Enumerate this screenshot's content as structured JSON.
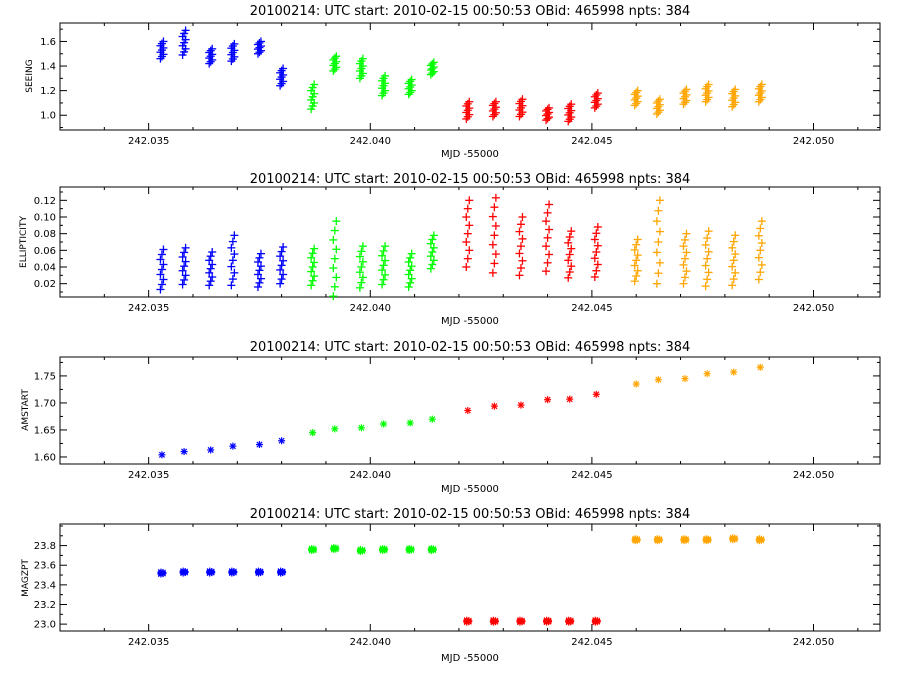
{
  "page": {
    "colors": {
      "background": "#ffffff",
      "axis": "#000000"
    }
  },
  "chart_data": [
    {
      "type": "scatter",
      "title": "20100214: UTC start: 2010-02-15 00:50:53  OBid: 465998  npts:    384",
      "xlabel": "MJD -55000",
      "ylabel": "SEEING",
      "xlim": [
        242.033,
        242.0515
      ],
      "ylim": [
        0.88,
        1.75
      ],
      "xticks": [
        242.035,
        242.04,
        242.045,
        242.05
      ],
      "xticklabels": [
        "242.035",
        "242.040",
        "242.045",
        "242.050"
      ],
      "yticks": [
        1.0,
        1.2,
        1.4,
        1.6
      ],
      "yticklabels": [
        "1.0",
        "1.2",
        "1.4",
        "1.6"
      ],
      "marker": "plus",
      "series": [
        {
          "color": "#0000ff",
          "x": [
            242.0353,
            242.0358,
            242.0364,
            242.0369,
            242.0375,
            242.038
          ],
          "y": [
            1.53,
            1.59,
            1.48,
            1.51,
            1.55,
            1.31
          ],
          "spread": [
            0.07,
            0.1,
            0.06,
            0.07,
            0.05,
            0.07
          ]
        },
        {
          "color": "#00ff00",
          "x": [
            242.0387,
            242.0392,
            242.0398,
            242.0403,
            242.0409,
            242.0414
          ],
          "y": [
            1.15,
            1.42,
            1.38,
            1.24,
            1.23,
            1.38
          ],
          "spread": [
            0.1,
            0.06,
            0.08,
            0.08,
            0.06,
            0.05
          ]
        },
        {
          "color": "#ff0000",
          "x": [
            242.0422,
            242.0428,
            242.0434,
            242.044,
            242.0445,
            242.0451
          ],
          "y": [
            1.04,
            1.05,
            1.06,
            1.01,
            1.02,
            1.12
          ],
          "spread": [
            0.07,
            0.06,
            0.07,
            0.05,
            0.07,
            0.06
          ]
        },
        {
          "color": "#ffa500",
          "x": [
            242.046,
            242.0465,
            242.0471,
            242.0476,
            242.0482,
            242.0488
          ],
          "y": [
            1.14,
            1.07,
            1.15,
            1.18,
            1.14,
            1.18
          ],
          "spread": [
            0.06,
            0.06,
            0.06,
            0.07,
            0.07,
            0.07
          ]
        }
      ]
    },
    {
      "type": "scatter",
      "title": "20100214: UTC start: 2010-02-15 00:50:53  OBid: 465998  npts:    384",
      "xlabel": "MJD -55000",
      "ylabel": "ELLIPTICITY",
      "xlim": [
        242.033,
        242.0515
      ],
      "ylim": [
        0.004,
        0.136
      ],
      "xticks": [
        242.035,
        242.04,
        242.045,
        242.05
      ],
      "xticklabels": [
        "242.035",
        "242.040",
        "242.045",
        "242.050"
      ],
      "yticks": [
        0.02,
        0.04,
        0.06,
        0.08,
        0.1,
        0.12
      ],
      "yticklabels": [
        "0.02",
        "0.04",
        "0.06",
        "0.08",
        "0.10",
        "0.12"
      ],
      "marker": "plus",
      "series": [
        {
          "color": "#0000ff",
          "x": [
            242.0353,
            242.0358,
            242.0364,
            242.0369,
            242.0375,
            242.038
          ],
          "y": [
            0.037,
            0.041,
            0.038,
            0.048,
            0.036,
            0.042
          ],
          "spread": [
            0.024,
            0.022,
            0.02,
            0.03,
            0.02,
            0.022
          ]
        },
        {
          "color": "#00ff00",
          "x": [
            242.0387,
            242.0392,
            242.0398,
            242.0403,
            242.0409,
            242.0414
          ],
          "y": [
            0.04,
            0.05,
            0.04,
            0.042,
            0.036,
            0.058
          ],
          "spread": [
            0.022,
            0.045,
            0.025,
            0.023,
            0.02,
            0.02
          ]
        },
        {
          "color": "#ff0000",
          "x": [
            242.0422,
            242.0428,
            242.0434,
            242.044,
            242.0445,
            242.0451
          ],
          "y": [
            0.08,
            0.078,
            0.065,
            0.075,
            0.055,
            0.058
          ],
          "spread": [
            0.04,
            0.045,
            0.035,
            0.04,
            0.028,
            0.03
          ]
        },
        {
          "color": "#ffa500",
          "x": [
            242.046,
            242.0465,
            242.0471,
            242.0476,
            242.0482,
            242.0488
          ],
          "y": [
            0.048,
            0.07,
            0.05,
            0.05,
            0.048,
            0.06
          ],
          "spread": [
            0.025,
            0.05,
            0.03,
            0.033,
            0.03,
            0.035
          ]
        }
      ]
    },
    {
      "type": "scatter",
      "title": "20100214: UTC start: 2010-02-15 00:50:53  OBid: 465998  npts:    384",
      "xlabel": "MJD -55000",
      "ylabel": "AMSTART",
      "xlim": [
        242.033,
        242.0515
      ],
      "ylim": [
        1.587,
        1.785
      ],
      "xticks": [
        242.035,
        242.04,
        242.045,
        242.05
      ],
      "xticklabels": [
        "242.035",
        "242.040",
        "242.045",
        "242.050"
      ],
      "yticks": [
        1.6,
        1.65,
        1.7,
        1.75
      ],
      "yticklabels": [
        "1.60",
        "1.65",
        "1.70",
        "1.75"
      ],
      "marker": "asterisk",
      "series": [
        {
          "color": "#0000ff",
          "x": [
            242.0353,
            242.0358,
            242.0364,
            242.0369,
            242.0375,
            242.038
          ],
          "y": [
            1.604,
            1.61,
            1.613,
            1.62,
            1.623,
            1.63
          ],
          "spread": [
            0,
            0,
            0,
            0,
            0,
            0
          ]
        },
        {
          "color": "#00ff00",
          "x": [
            242.0387,
            242.0392,
            242.0398,
            242.0403,
            242.0409,
            242.0414
          ],
          "y": [
            1.645,
            1.652,
            1.654,
            1.661,
            1.663,
            1.67
          ],
          "spread": [
            0,
            0,
            0,
            0,
            0,
            0
          ]
        },
        {
          "color": "#ff0000",
          "x": [
            242.0422,
            242.0428,
            242.0434,
            242.044,
            242.0445,
            242.0451
          ],
          "y": [
            1.686,
            1.694,
            1.696,
            1.706,
            1.707,
            1.716
          ],
          "spread": [
            0,
            0,
            0,
            0,
            0,
            0
          ]
        },
        {
          "color": "#ffa500",
          "x": [
            242.046,
            242.0465,
            242.0471,
            242.0476,
            242.0482,
            242.0488
          ],
          "y": [
            1.735,
            1.743,
            1.745,
            1.754,
            1.757,
            1.766
          ],
          "spread": [
            0,
            0,
            0,
            0,
            0,
            0
          ]
        }
      ]
    },
    {
      "type": "scatter",
      "title": "20100214: UTC start: 2010-02-15 00:50:53  OBid: 465998  npts:    384",
      "xlabel": "MJD -55000",
      "ylabel": "MAGZPT",
      "xlim": [
        242.033,
        242.0515
      ],
      "ylim": [
        22.93,
        24.02
      ],
      "xticks": [
        242.035,
        242.04,
        242.045,
        242.05
      ],
      "xticklabels": [
        "242.035",
        "242.040",
        "242.045",
        "242.050"
      ],
      "yticks": [
        23.0,
        23.2,
        23.4,
        23.6,
        23.8
      ],
      "yticklabels": [
        "23.0",
        "23.2",
        "23.4",
        "23.6",
        "23.8"
      ],
      "marker": "asterisk",
      "series": [
        {
          "color": "#0000ff",
          "x": [
            242.0353,
            242.0358,
            242.0364,
            242.0369,
            242.0375,
            242.038
          ],
          "y": [
            23.52,
            23.53,
            23.53,
            23.53,
            23.53,
            23.53
          ],
          "spread": [
            0.01,
            0.01,
            0.01,
            0.01,
            0.01,
            0.01
          ]
        },
        {
          "color": "#00ff00",
          "x": [
            242.0387,
            242.0392,
            242.0398,
            242.0403,
            242.0409,
            242.0414
          ],
          "y": [
            23.76,
            23.77,
            23.75,
            23.76,
            23.76,
            23.76
          ],
          "spread": [
            0.01,
            0.01,
            0.01,
            0.01,
            0.01,
            0.01
          ]
        },
        {
          "color": "#ff0000",
          "x": [
            242.0422,
            242.0428,
            242.0434,
            242.044,
            242.0445,
            242.0451
          ],
          "y": [
            23.03,
            23.03,
            23.03,
            23.03,
            23.03,
            23.03
          ],
          "spread": [
            0.01,
            0.01,
            0.01,
            0.01,
            0.01,
            0.01
          ]
        },
        {
          "color": "#ffa500",
          "x": [
            242.046,
            242.0465,
            242.0471,
            242.0476,
            242.0482,
            242.0488
          ],
          "y": [
            23.86,
            23.86,
            23.86,
            23.86,
            23.87,
            23.86
          ],
          "spread": [
            0.01,
            0.01,
            0.01,
            0.01,
            0.01,
            0.01
          ]
        }
      ]
    }
  ]
}
